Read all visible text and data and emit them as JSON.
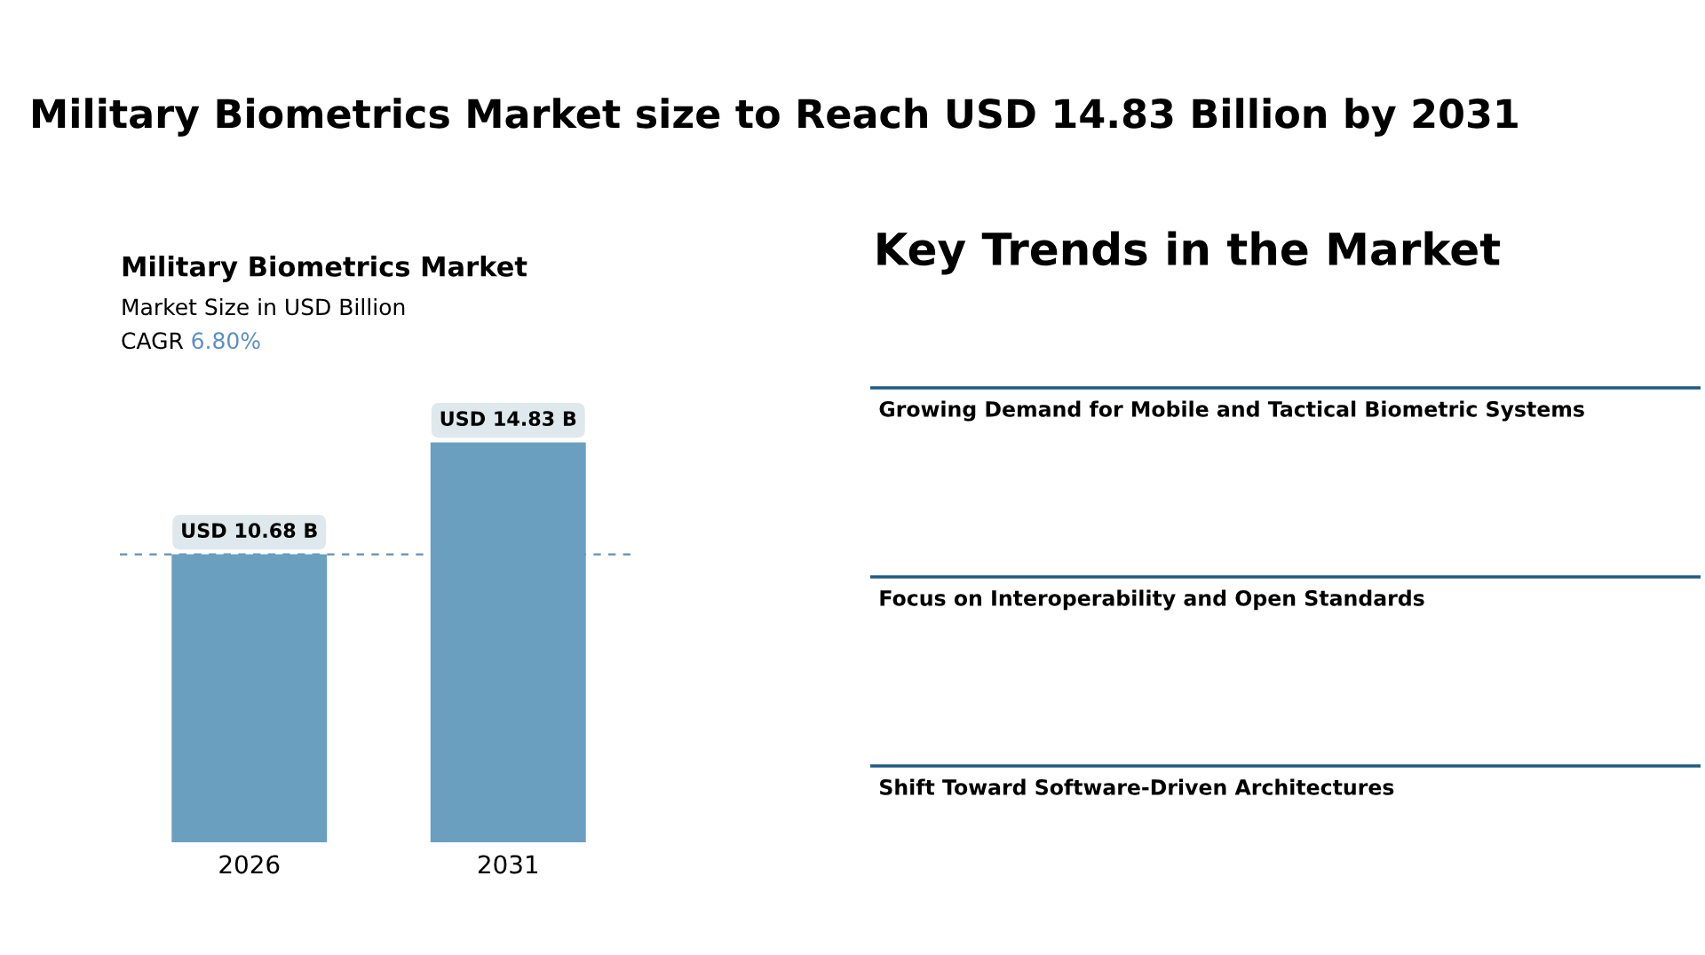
{
  "chart_data": [
    {
      "type": "bar",
      "title": "Military Biometrics Market",
      "subtitle": "Market Size in USD Billion",
      "annotations": [
        "Military Biometrics Market size to Reach USD 14.83 Billion by 2031",
        "CAGR 6.80%"
      ],
      "categories": [
        "2026",
        "2031"
      ],
      "values": [
        10.68,
        14.83
      ],
      "value_labels": [
        "USD 10.68 B",
        "USD 14.83 B"
      ],
      "color": "#6a9fbf",
      "ref_lines": [
        {
          "axis": "y",
          "value": 10.68,
          "color": "#6a8fa8",
          "line_style": "dashed"
        }
      ],
      "grid": false
    },
    {
      "type": "other",
      "title": "Key Trends in the Market",
      "annotations": [
        "Growing Demand for Mobile and Tactical Biometric Systems",
        "Focus on Interoperability and Open Standards",
        "Shift Toward Software-Driven Architectures"
      ]
    }
  ]
}
